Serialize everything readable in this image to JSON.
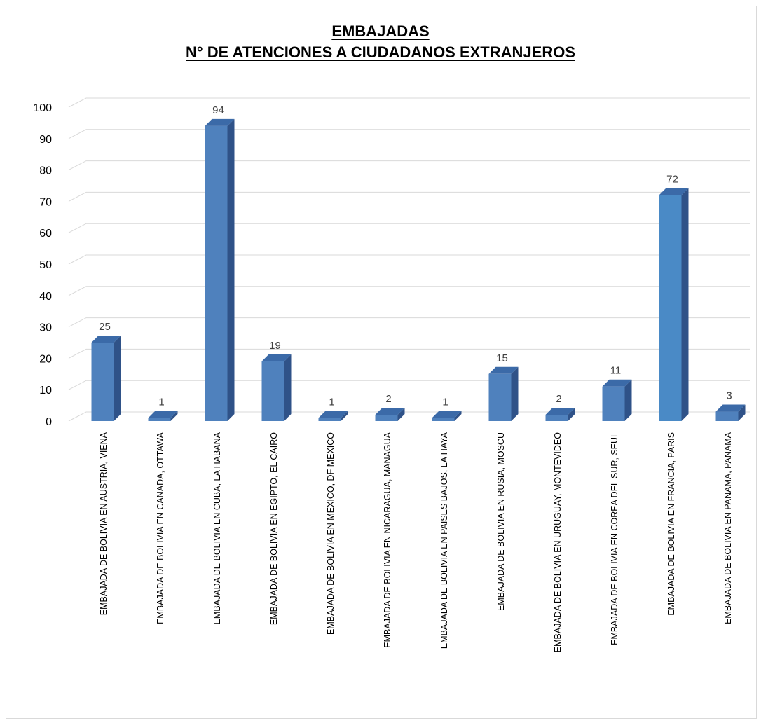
{
  "chart_data": {
    "type": "bar",
    "title": "EMBAJADAS",
    "subtitle": "N° DE ATENCIONES A CIUDADANOS EXTRANJEROS",
    "xlabel": "",
    "ylabel": "",
    "ylim": [
      0,
      100
    ],
    "yticks": [
      "0",
      "10",
      "20",
      "30",
      "40",
      "50",
      "60",
      "70",
      "80",
      "90",
      "100"
    ],
    "grid": true,
    "legend": "none",
    "style": "3d-column",
    "colors": {
      "bar_front": "#4f81bd",
      "bar_side": "#2f5288",
      "bar_top": "#3b6aa8",
      "bar_highlight_front": "#4a8ac6",
      "grid": "#d9d9d9",
      "text": "#000000",
      "data_label": "#404040"
    },
    "categories": [
      "EMBAJADA DE BOLIVIA EN AUSTRIA, VIENA",
      "EMBAJADA DE BOLIVIA EN CANADA, OTTAWA",
      "EMBAJADA DE BOLIVIA EN CUBA, LA HABANA",
      "EMBAJADA DE BOLIVIA EN EGIPTO, EL CAIRO",
      "EMBAJADA DE BOLIVIA EN MEXICO, DF MEXICO",
      "EMBAJADA DE BOLIVIA EN NICARAGUA,  MANAGUA",
      "EMBAJADA DE BOLIVIA EN PAISES BAJOS, LA HAYA",
      "EMBAJADA DE BOLIVIA EN RUSIA, MOSCU",
      "EMBAJADA DE BOLIVIA EN URUGUAY, MONTEVIDEO",
      "EMBAJADA DE BOLIVIA EN COREA DEL SUR,  SEUL",
      "EMBAJADA DE BOLIVIA EN FRANCIA,  PARIS",
      "EMBAJADA DE BOLIVIA EN PANAMA,  PANAMA"
    ],
    "values": [
      25,
      1,
      94,
      19,
      1,
      2,
      1,
      15,
      2,
      11,
      72,
      3
    ],
    "data_labels": [
      "25",
      "1",
      "94",
      "19",
      "1",
      "2",
      "1",
      "15",
      "2",
      "11",
      "72",
      "3"
    ],
    "highlighted_index": 10
  }
}
